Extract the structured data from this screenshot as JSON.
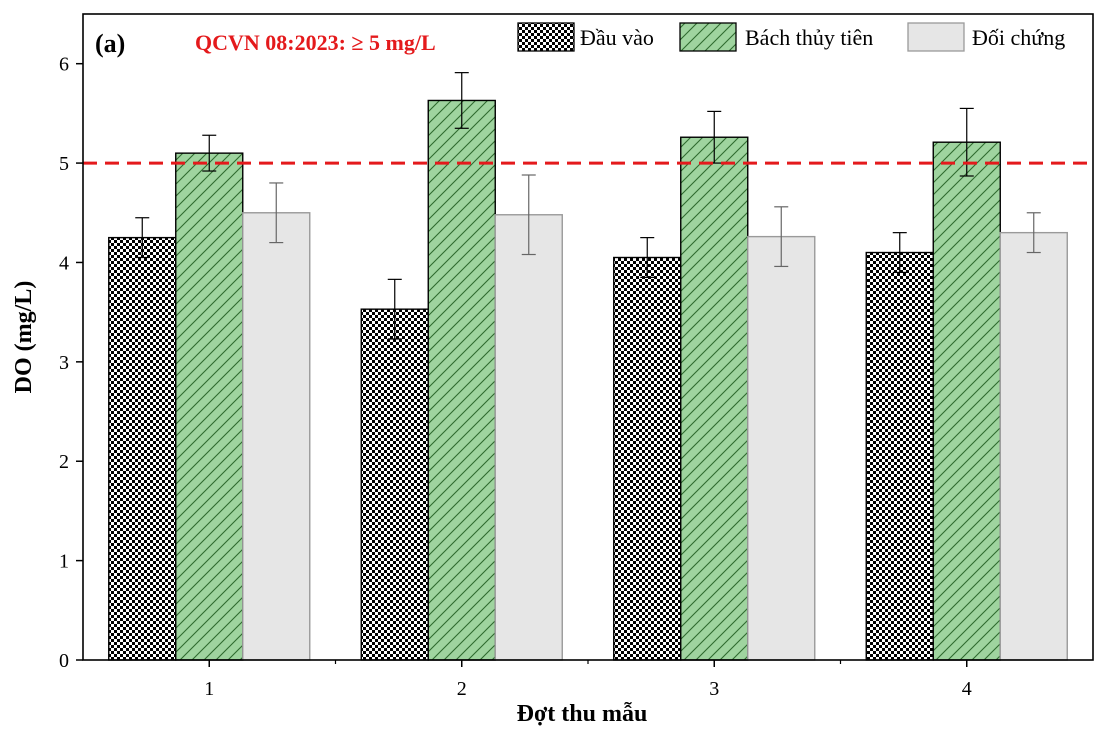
{
  "chart_data": {
    "type": "bar",
    "panel_label": "(a)",
    "annotation": "QCVN 08:2023: ≥ 5 mg/L",
    "threshold": 5,
    "xlabel": "Đợt thu mẫu",
    "ylabel": "DO (mg/L)",
    "ylim": [
      0,
      6.5
    ],
    "yticks": [
      0,
      1,
      2,
      3,
      4,
      5,
      6
    ],
    "categories": [
      "1",
      "2",
      "3",
      "4"
    ],
    "grid": false,
    "legend_position": "top-right",
    "series": [
      {
        "name": "Đầu vào",
        "values": [
          4.25,
          3.53,
          4.05,
          4.1
        ],
        "errors": [
          0.2,
          0.3,
          0.2,
          0.2
        ],
        "pattern": "checker",
        "color": "#000000"
      },
      {
        "name": "Bách thủy tiên",
        "values": [
          5.1,
          5.63,
          5.26,
          5.21
        ],
        "errors": [
          0.18,
          0.28,
          0.26,
          0.34
        ],
        "pattern": "hatch",
        "color": "#9fd49f"
      },
      {
        "name": "Đối chứng",
        "values": [
          4.5,
          4.48,
          4.26,
          4.3
        ],
        "errors": [
          0.3,
          0.4,
          0.3,
          0.2
        ],
        "pattern": "solid",
        "color": "#e6e6e6"
      }
    ],
    "colors": {
      "threshold_line": "#e41a1c",
      "annotation_text": "#e41a1c",
      "hatch_stroke": "#2f6b2f",
      "light_bar_stroke": "#9a9a9a"
    }
  }
}
